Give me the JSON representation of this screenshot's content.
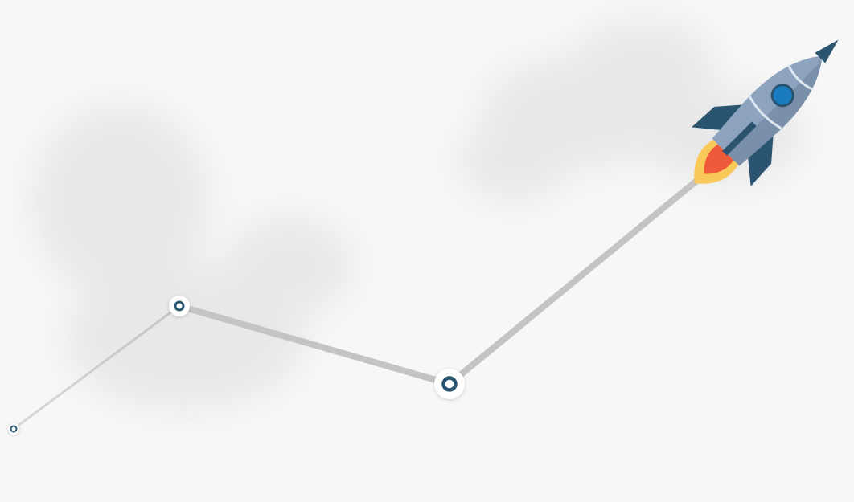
{
  "colors": {
    "background": "#f7f7f7",
    "cloud": "#dcdcdc",
    "path": "#c4c4c4",
    "node_ring": "#ffffff",
    "node_center": "#2a5470",
    "rocket_body": "#8ea3bd",
    "rocket_body_shade": "#7a8fa9",
    "rocket_fin": "#2a5470",
    "rocket_window": "#1a7bbf",
    "rocket_stripe": "#dfe8f2",
    "flame_outer": "#f9c95a",
    "flame_inner": "#ef5a3a"
  },
  "icons": {
    "rocket": "rocket-icon",
    "node": "milestone-node-icon"
  },
  "diagram": {
    "type": "growth-path",
    "milestones": [
      "start",
      "milestone-1",
      "milestone-2",
      "launch"
    ]
  }
}
